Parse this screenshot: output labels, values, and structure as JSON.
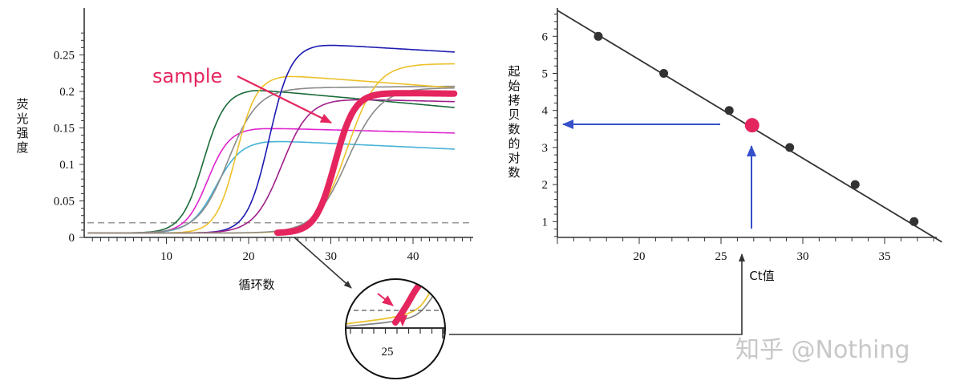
{
  "chart_data": [
    {
      "type": "line",
      "ylabel": "荧光强度",
      "xlabel": "循环数",
      "xticks": [
        10,
        20,
        30,
        40
      ],
      "yticks": [
        "0",
        "0.05",
        "0.1",
        "0.15",
        "0.2",
        "0.25"
      ],
      "ylim": [
        0,
        0.28
      ],
      "xlim": [
        0,
        46
      ],
      "threshold": 0.02,
      "annotation": "sample",
      "series": [
        {
          "color": "#1a6b3a",
          "mid": 14.5,
          "k": 0.75,
          "top": 0.203,
          "end": 0.178
        },
        {
          "color": "#e024cf",
          "mid": 15.0,
          "k": 0.75,
          "top": 0.15,
          "end": 0.143
        },
        {
          "color": "#45b3d6",
          "mid": 16.0,
          "k": 0.65,
          "top": 0.133,
          "end": 0.121
        },
        {
          "color": "#8a8a8a",
          "mid": 17.5,
          "k": 0.55,
          "top": 0.205,
          "end": 0.207
        },
        {
          "color": "#ecc12a",
          "mid": 18.5,
          "k": 0.8,
          "top": 0.222,
          "end": 0.205
        },
        {
          "color": "#1c1ab0",
          "mid": 22.5,
          "k": 0.75,
          "top": 0.265,
          "end": 0.254
        },
        {
          "color": "#a0208a",
          "mid": 24.0,
          "k": 0.6,
          "top": 0.19,
          "end": 0.186
        },
        {
          "color": "#ecc12a",
          "mid": 32.0,
          "k": 0.55,
          "top": 0.238,
          "end": 0.238
        },
        {
          "color": "#8a8a8a",
          "mid": 32.0,
          "k": 0.5,
          "top": 0.205,
          "end": 0.205
        },
        {
          "color": "#e5265e",
          "mid": 30.5,
          "k": 0.85,
          "top": 0.198,
          "end": 0.197,
          "name": "sample"
        }
      ]
    },
    {
      "type": "scatter",
      "ylabel": "起始拷贝数的对数",
      "xlabel": "Ct值",
      "xticks": [
        20,
        25,
        30,
        35
      ],
      "yticks": [
        1,
        2,
        3,
        4,
        5,
        6
      ],
      "xlim": [
        15,
        38.5
      ],
      "ylim": [
        0.3,
        6.5
      ],
      "points": [
        {
          "x": 17.5,
          "y": 6.0
        },
        {
          "x": 21.5,
          "y": 5.0
        },
        {
          "x": 25.5,
          "y": 4.0
        },
        {
          "x": 29.2,
          "y": 3.0
        },
        {
          "x": 33.2,
          "y": 2.0
        },
        {
          "x": 36.8,
          "y": 1.0
        }
      ],
      "sample_point": {
        "x": 26.9,
        "y": 3.6
      },
      "fit_line": {
        "x": [
          15,
          38.5
        ],
        "y": [
          6.7,
          0.45
        ]
      }
    }
  ],
  "inset": {
    "tick_label": "25"
  },
  "watermark": "知乎 @Nothing"
}
